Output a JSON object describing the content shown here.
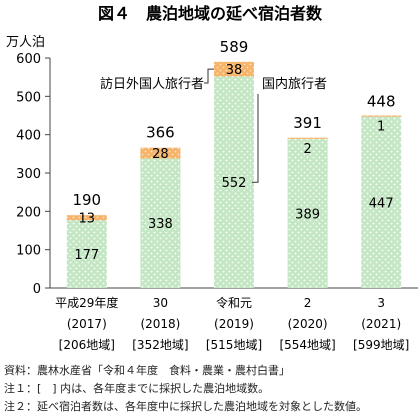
{
  "chart_data": {
    "type": "bar",
    "stacked": true,
    "title": "図４　農泊地域の延べ宿泊者数",
    "y_unit": "万人泊",
    "ylim": [
      0,
      600
    ],
    "y_ticks": [
      0,
      100,
      200,
      300,
      400,
      500,
      600
    ],
    "categories": [
      {
        "label": "平成29年度",
        "year": "(2017)",
        "regions": "[206地域]"
      },
      {
        "label": "30",
        "year": "(2018)",
        "regions": "[352地域]"
      },
      {
        "label": "令和元",
        "year": "(2019)",
        "regions": "[515地域]"
      },
      {
        "label": "2",
        "year": "(2020)",
        "regions": "[554地域]"
      },
      {
        "label": "3",
        "year": "(2021)",
        "regions": "[599地域]"
      }
    ],
    "series": [
      {
        "name": "国内旅行者",
        "color": "#bfe3bf",
        "values": [
          177,
          338,
          552,
          389,
          447
        ]
      },
      {
        "name": "訪日外国人旅行者",
        "color": "#f6b36a",
        "values": [
          13,
          28,
          38,
          2,
          1
        ]
      }
    ],
    "totals": [
      190,
      366,
      589,
      391,
      448
    ],
    "grid": false,
    "legend": "callout labels pointing to 2019 bar"
  },
  "notes": [
    "資料：農林水産省「令和４年度　食料・農業・農村白書」",
    "注１：[　] 内は、各年度までに採択した農泊地域数。",
    "注２：延べ宿泊者数は、各年度中に採択した農泊地域を対象とした数値。"
  ]
}
